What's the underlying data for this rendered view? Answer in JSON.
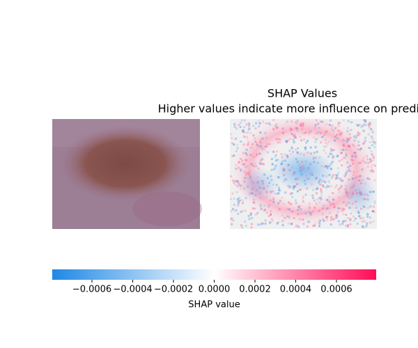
{
  "chart_data": {
    "type": "image_colorbar",
    "title": "SHAP Values",
    "subtitle": "Higher values indicate more influence on prediction",
    "colorbar": {
      "label": "SHAP value",
      "xlim": [
        -0.000795,
        0.000795
      ],
      "xticks": [
        {
          "value": -0.0006,
          "label": "−0.0006"
        },
        {
          "value": -0.0004,
          "label": "−0.0004"
        },
        {
          "value": -0.0002,
          "label": "−0.0002"
        },
        {
          "value": 0,
          "label": "0.0000"
        },
        {
          "value": 0.0002,
          "label": "0.0002"
        },
        {
          "value": 0.0004,
          "label": "0.0004"
        },
        {
          "value": 0.0006,
          "label": "0.0006"
        }
      ],
      "colors": [
        "#1e88e5",
        "#ffffff",
        "#ff0d57"
      ]
    }
  }
}
